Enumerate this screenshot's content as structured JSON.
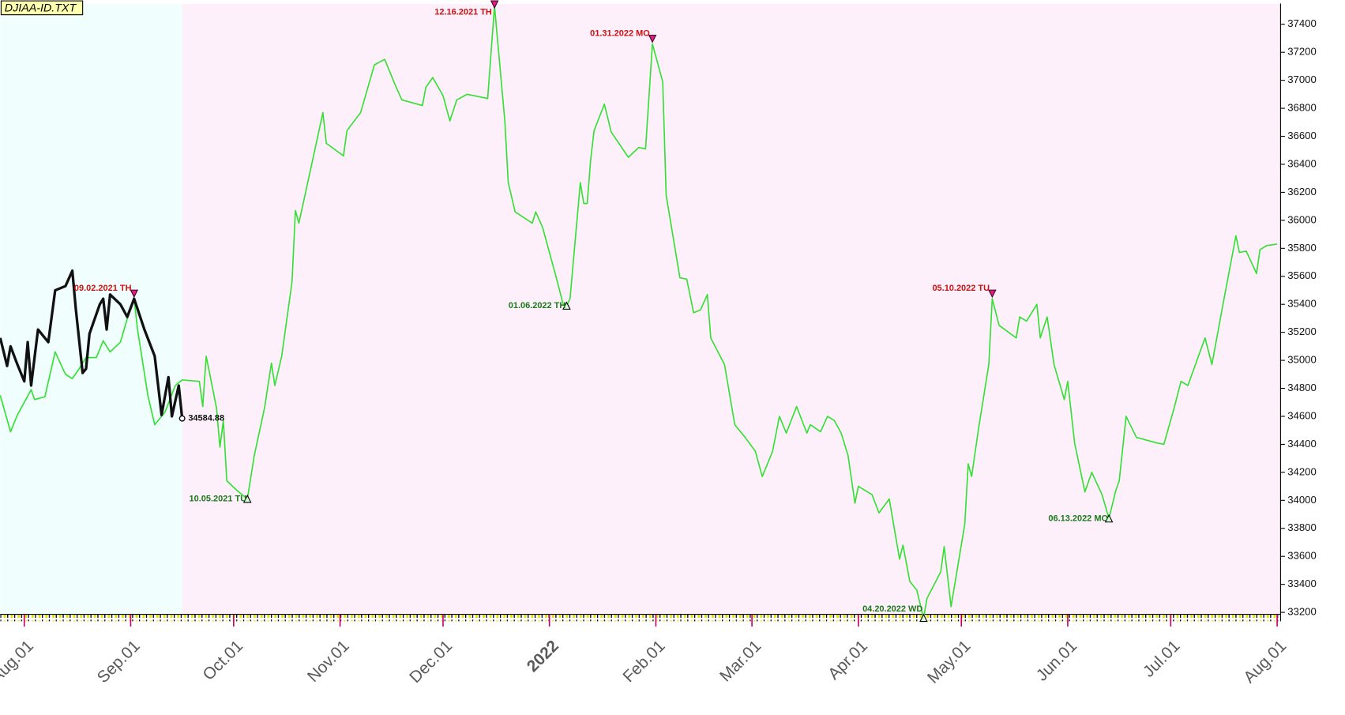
{
  "chart_data": {
    "type": "line",
    "title": "DJIAA-ID.TXT",
    "xlim": [
      "2021-07-25",
      "2022-08-02"
    ],
    "ylim": [
      33140,
      37545
    ],
    "yticks": [
      33200,
      33400,
      33600,
      33800,
      34000,
      34200,
      34400,
      34600,
      34800,
      35000,
      35200,
      35400,
      35600,
      35800,
      36000,
      36200,
      36400,
      36600,
      36800,
      37000,
      37200,
      37400
    ],
    "xticks": [
      {
        "value": "2021-08-01",
        "label": "Aug.01"
      },
      {
        "value": "2021-09-01",
        "label": "Sep.01"
      },
      {
        "value": "2021-10-01",
        "label": "Oct.01"
      },
      {
        "value": "2021-11-01",
        "label": "Nov.01"
      },
      {
        "value": "2021-12-01",
        "label": "Dec.01"
      },
      {
        "value": "2022-01-01",
        "label": "2022"
      },
      {
        "value": "2022-02-01",
        "label": "Feb.01"
      },
      {
        "value": "2022-03-01",
        "label": "Mar.01"
      },
      {
        "value": "2022-04-01",
        "label": "Apr.01"
      },
      {
        "value": "2022-05-01",
        "label": "May.01"
      },
      {
        "value": "2022-06-01",
        "label": "Jun.01"
      },
      {
        "value": "2022-07-01",
        "label": "Jul.01"
      },
      {
        "value": "2022-08-01",
        "label": "Aug.01"
      }
    ],
    "grid": false,
    "shading": [
      {
        "from": "2021-07-25",
        "to": "2021-09-16",
        "color": "#f0fffd"
      },
      {
        "from": "2021-09-16",
        "to": "2022-08-02",
        "color": "#fdf0fb"
      }
    ],
    "series": [
      {
        "color": "#33e033",
        "x": [
          "2021-07-25",
          "2021-07-28",
          "2021-07-30",
          "2021-08-03",
          "2021-08-04",
          "2021-08-07",
          "2021-08-10",
          "2021-08-13",
          "2021-08-15",
          "2021-08-17",
          "2021-08-19",
          "2021-08-22",
          "2021-08-24",
          "2021-08-26",
          "2021-08-29",
          "2021-09-01",
          "2021-09-02",
          "2021-09-03",
          "2021-09-06",
          "2021-09-08",
          "2021-09-11",
          "2021-09-14",
          "2021-09-16",
          "2021-09-21",
          "2021-09-22",
          "2021-09-23",
          "2021-09-26",
          "2021-09-27",
          "2021-09-28",
          "2021-09-29",
          "2021-10-02",
          "2021-10-05",
          "2021-10-07",
          "2021-10-10",
          "2021-10-12",
          "2021-10-13",
          "2021-10-15",
          "2021-10-18",
          "2021-10-19",
          "2021-10-20",
          "2021-10-24",
          "2021-10-27",
          "2021-10-28",
          "2021-11-02",
          "2021-11-03",
          "2021-11-07",
          "2021-11-11",
          "2021-11-14",
          "2021-11-17",
          "2021-11-19",
          "2021-11-25",
          "2021-11-26",
          "2021-11-28",
          "2021-12-01",
          "2021-12-03",
          "2021-12-05",
          "2021-12-08",
          "2021-12-14",
          "2021-12-16",
          "2021-12-19",
          "2021-12-20",
          "2021-12-22",
          "2021-12-27",
          "2021-12-28",
          "2021-12-30",
          "2022-01-03",
          "2022-01-05",
          "2022-01-06",
          "2022-01-07",
          "2022-01-10",
          "2022-01-11",
          "2022-01-12",
          "2022-01-13",
          "2022-01-14",
          "2022-01-17",
          "2022-01-19",
          "2022-01-24",
          "2022-01-27",
          "2022-01-29",
          "2022-01-31",
          "2022-02-03",
          "2022-02-04",
          "2022-02-08",
          "2022-02-10",
          "2022-02-12",
          "2022-02-14",
          "2022-02-16",
          "2022-02-17",
          "2022-02-21",
          "2022-02-24",
          "2022-02-27",
          "2022-03-02",
          "2022-03-04",
          "2022-03-07",
          "2022-03-09",
          "2022-03-11",
          "2022-03-14",
          "2022-03-17",
          "2022-03-18",
          "2022-03-21",
          "2022-03-23",
          "2022-03-25",
          "2022-03-27",
          "2022-03-29",
          "2022-03-31",
          "2022-04-01",
          "2022-04-05",
          "2022-04-07",
          "2022-04-10",
          "2022-04-13",
          "2022-04-14",
          "2022-04-16",
          "2022-04-18",
          "2022-04-20",
          "2022-04-21",
          "2022-04-25",
          "2022-04-26",
          "2022-04-28",
          "2022-05-02",
          "2022-05-03",
          "2022-05-04",
          "2022-05-06",
          "2022-05-09",
          "2022-05-10",
          "2022-05-12",
          "2022-05-17",
          "2022-05-18",
          "2022-05-20",
          "2022-05-23",
          "2022-05-24",
          "2022-05-26",
          "2022-05-28",
          "2022-05-31",
          "2022-06-01",
          "2022-06-03",
          "2022-06-06",
          "2022-06-08",
          "2022-06-11",
          "2022-06-13",
          "2022-06-15",
          "2022-06-16",
          "2022-06-18",
          "2022-06-21",
          "2022-06-27",
          "2022-06-29",
          "2022-07-02",
          "2022-07-04",
          "2022-07-06",
          "2022-07-11",
          "2022-07-13",
          "2022-07-16",
          "2022-07-20",
          "2022-07-21",
          "2022-07-23",
          "2022-07-26",
          "2022-07-27",
          "2022-07-29",
          "2022-08-01"
        ],
        "values": [
          34750,
          34490,
          34610,
          34790,
          34720,
          34740,
          35060,
          34900,
          34870,
          34940,
          35020,
          35020,
          35140,
          35060,
          35130,
          35380,
          35440,
          35220,
          34750,
          34540,
          34630,
          34820,
          34860,
          34850,
          34670,
          35030,
          34660,
          34380,
          34570,
          34140,
          34070,
          34010,
          34320,
          34660,
          34980,
          34820,
          35030,
          35560,
          36070,
          35980,
          36430,
          36770,
          36550,
          36460,
          36640,
          36770,
          37110,
          37150,
          36970,
          36860,
          36820,
          36950,
          37020,
          36890,
          36710,
          36860,
          36900,
          36870,
          37530,
          36710,
          36270,
          36060,
          35980,
          36060,
          35950,
          35590,
          35400,
          35390,
          35440,
          36270,
          36120,
          36120,
          36430,
          36640,
          36830,
          36630,
          36450,
          36520,
          36510,
          37260,
          36990,
          36180,
          35590,
          35580,
          35340,
          35360,
          35470,
          35160,
          34970,
          34540,
          34450,
          34350,
          34170,
          34350,
          34600,
          34480,
          34670,
          34480,
          34540,
          34490,
          34600,
          34570,
          34480,
          34320,
          33980,
          34100,
          34040,
          33910,
          34010,
          33580,
          33680,
          33420,
          33360,
          33160,
          33300,
          33490,
          33670,
          33240,
          33830,
          34260,
          34170,
          34510,
          34970,
          35440,
          35250,
          35160,
          35310,
          35280,
          35400,
          35160,
          35310,
          34970,
          34720,
          34850,
          34410,
          34060,
          34200,
          34040,
          33870,
          34070,
          34140,
          34600,
          34450,
          34410,
          34400,
          34660,
          34850,
          34820,
          35160,
          34970,
          35370,
          35890,
          35770,
          35780,
          35620,
          35790,
          35820,
          35830
        ]
      },
      {
        "color": "#111111",
        "x": [
          "2021-07-25",
          "2021-07-27",
          "2021-07-28",
          "2021-07-30",
          "2021-08-01",
          "2021-08-02",
          "2021-08-03",
          "2021-08-05",
          "2021-08-08",
          "2021-08-10",
          "2021-08-13",
          "2021-08-15",
          "2021-08-16",
          "2021-08-18",
          "2021-08-19",
          "2021-08-20",
          "2021-08-23",
          "2021-08-24",
          "2021-08-25",
          "2021-08-26",
          "2021-08-29",
          "2021-08-31",
          "2021-09-02",
          "2021-09-05",
          "2021-09-08",
          "2021-09-10",
          "2021-09-12",
          "2021-09-13",
          "2021-09-15",
          "2021-09-16"
        ],
        "values": [
          35160,
          34960,
          35100,
          34970,
          34850,
          35130,
          34820,
          35220,
          35130,
          35500,
          35530,
          35640,
          35370,
          34910,
          34940,
          35190,
          35400,
          35440,
          35220,
          35470,
          35400,
          35310,
          35440,
          35220,
          35030,
          34610,
          34880,
          34600,
          34820,
          34584.88
        ]
      }
    ],
    "annotations": [
      {
        "x": "2021-09-02",
        "label": "09.02.2021 TH",
        "color": "#cc1111",
        "marker": "down"
      },
      {
        "x": "2021-10-05",
        "label": "10.05.2021 TU",
        "color": "#1a7a1a",
        "marker": "up"
      },
      {
        "x": "2021-12-16",
        "label": "12.16.2021 TH",
        "color": "#cc1111",
        "marker": "down"
      },
      {
        "x": "2022-01-06",
        "label": "01.06.2022 TH",
        "color": "#1a7a1a",
        "marker": "up"
      },
      {
        "x": "2022-01-31",
        "label": "01.31.2022 MO",
        "color": "#cc1111",
        "marker": "down"
      },
      {
        "x": "2022-04-20",
        "label": "04.20.2022 WD",
        "color": "#1a7a1a",
        "marker": "up"
      },
      {
        "x": "2022-05-10",
        "label": "05.10.2022 TU",
        "color": "#cc1111",
        "marker": "down"
      },
      {
        "x": "2022-06-13",
        "label": "06.13.2022 MO",
        "color": "#1a7a1a",
        "marker": "up"
      }
    ]
  }
}
